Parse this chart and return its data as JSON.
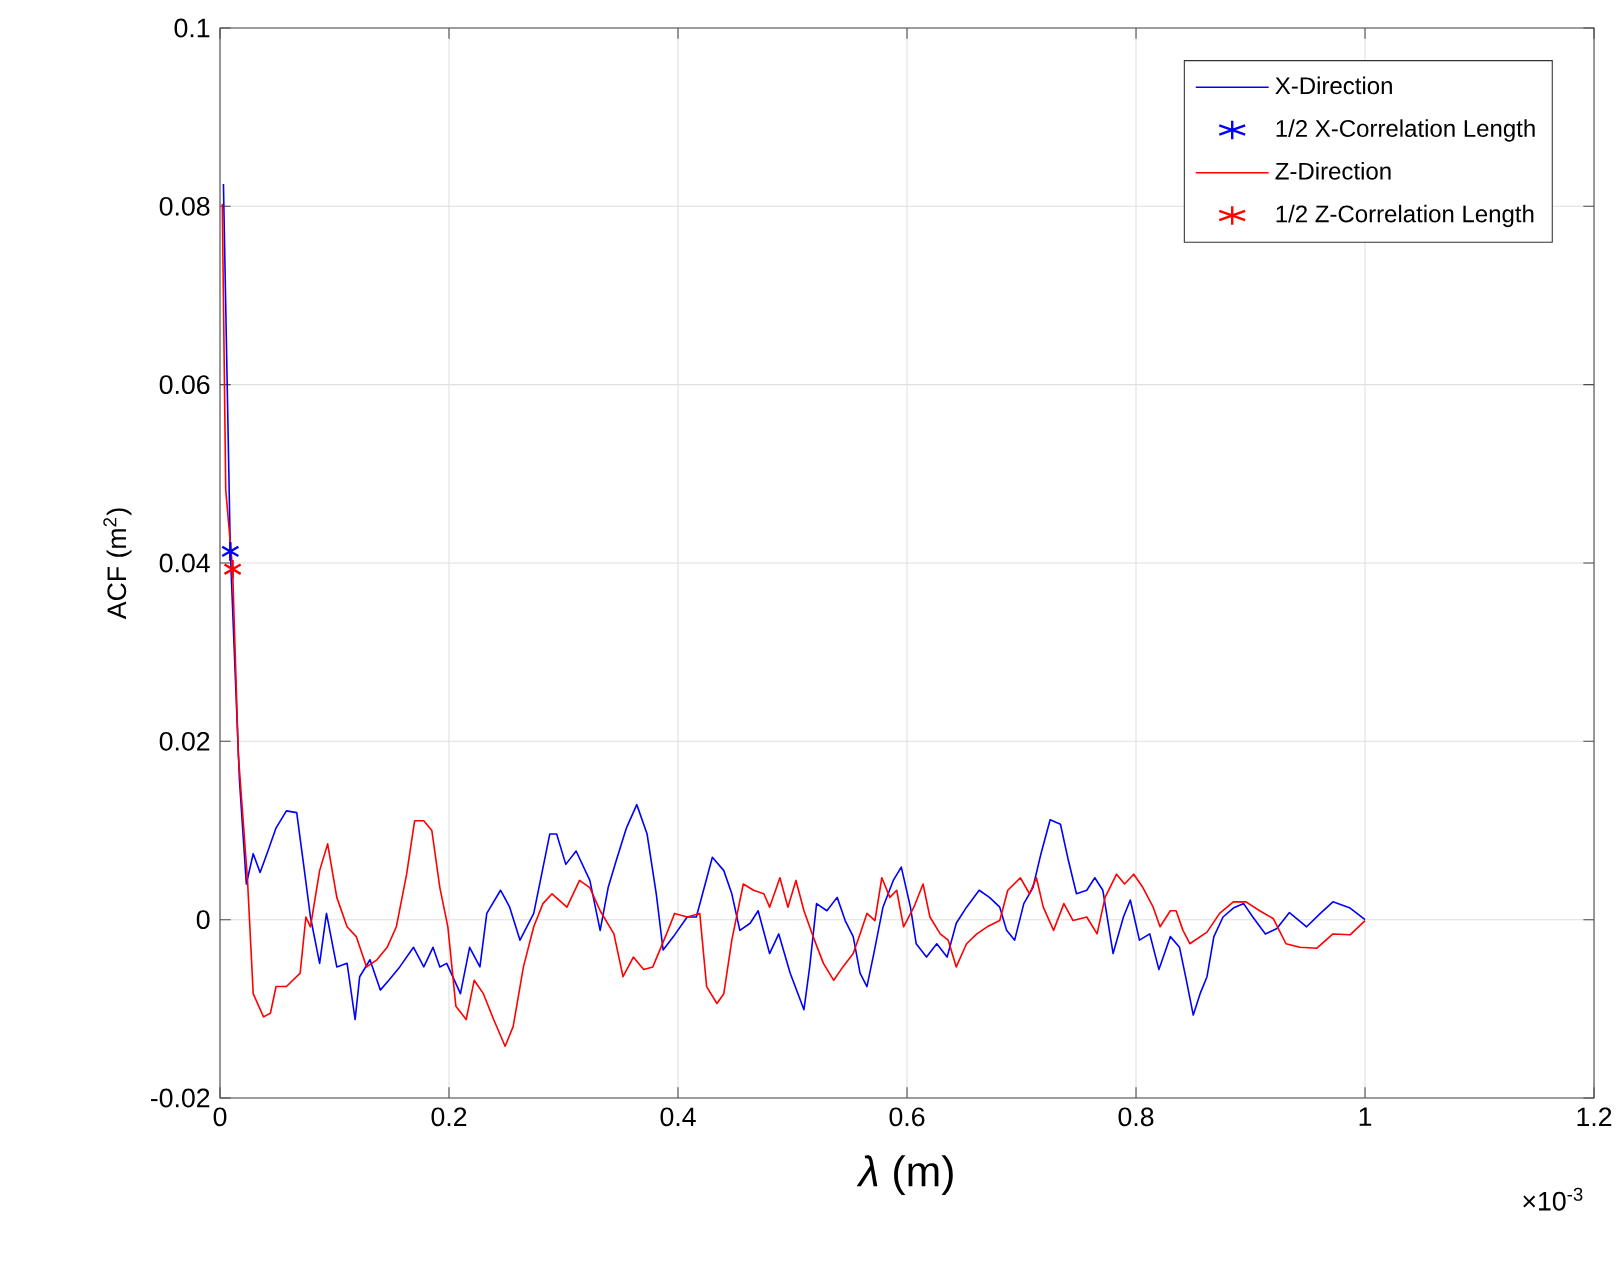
{
  "chart_data": {
    "type": "line",
    "xlabel": "*λ* (m)",
    "ylabel": "ACF (m$^{2}$)",
    "xlim": [
      0,
      1.2
    ],
    "ylim": [
      -0.02,
      0.1
    ],
    "xticks": [
      0,
      0.2,
      0.4,
      0.6,
      0.8,
      1,
      1.2
    ],
    "yticks": [
      -0.02,
      0,
      0.02,
      0.04,
      0.06,
      0.08,
      0.1
    ],
    "grid": true,
    "legend": "top right",
    "annotations": [
      "×10$^{-3}$"
    ],
    "series": [
      {
        "name": "X-Direction",
        "color": "#0000ff",
        "marker": "none",
        "x": [
          0.003,
          0.009,
          0.017,
          0.023,
          0.029,
          0.035,
          0.041,
          0.049,
          0.058,
          0.067,
          0.073,
          0.079,
          0.087,
          0.093,
          0.102,
          0.111,
          0.118,
          0.122,
          0.131,
          0.14,
          0.148,
          0.157,
          0.169,
          0.178,
          0.186,
          0.192,
          0.198,
          0.21,
          0.218,
          0.227,
          0.233,
          0.245,
          0.253,
          0.262,
          0.274,
          0.288,
          0.294,
          0.302,
          0.311,
          0.323,
          0.332,
          0.339,
          0.346,
          0.355,
          0.364,
          0.373,
          0.381,
          0.387,
          0.396,
          0.408,
          0.416,
          0.43,
          0.44,
          0.447,
          0.454,
          0.463,
          0.47,
          0.48,
          0.488,
          0.498,
          0.51,
          0.515,
          0.521,
          0.53,
          0.539,
          0.546,
          0.553,
          0.559,
          0.565,
          0.571,
          0.579,
          0.588,
          0.595,
          0.603,
          0.608,
          0.617,
          0.626,
          0.635,
          0.643,
          0.652,
          0.663,
          0.672,
          0.681,
          0.687,
          0.694,
          0.702,
          0.71,
          0.717,
          0.725,
          0.734,
          0.741,
          0.748,
          0.757,
          0.764,
          0.771,
          0.78,
          0.789,
          0.795,
          0.803,
          0.812,
          0.82,
          0.83,
          0.838,
          0.844,
          0.85,
          0.856,
          0.862,
          0.868,
          0.876,
          0.885,
          0.894,
          0.902,
          0.913,
          0.923,
          0.934,
          0.949,
          0.961,
          0.972,
          0.987,
          1.0
        ],
        "values": [
          0.0825,
          0.0413,
          0.0156,
          0.004,
          0.0074,
          0.0053,
          0.0074,
          0.0103,
          0.0122,
          0.012,
          0.0062,
          0.0003,
          -0.0049,
          0.0007,
          -0.0053,
          -0.0049,
          -0.0112,
          -0.0064,
          -0.0045,
          -0.0079,
          -0.0067,
          -0.0053,
          -0.0031,
          -0.0053,
          -0.0031,
          -0.0053,
          -0.0049,
          -0.0083,
          -0.0031,
          -0.0053,
          0.0007,
          0.0033,
          0.0014,
          -0.0023,
          0.0007,
          0.0096,
          0.0096,
          0.0062,
          0.0077,
          0.0044,
          -0.0012,
          0.0036,
          0.0066,
          0.0103,
          0.0129,
          0.0096,
          0.0029,
          -0.0034,
          -0.0019,
          0.0003,
          0.0003,
          0.007,
          0.0055,
          0.0029,
          -0.0012,
          -0.0004,
          0.001,
          -0.0038,
          -0.0016,
          -0.006,
          -0.0101,
          -0.0053,
          0.0018,
          0.001,
          0.0025,
          -0.0001,
          -0.0019,
          -0.006,
          -0.0075,
          -0.0038,
          0.0014,
          0.0044,
          0.0059,
          0.0014,
          -0.0027,
          -0.0042,
          -0.0027,
          -0.0042,
          -0.0004,
          0.0014,
          0.0033,
          0.0025,
          0.0014,
          -0.0012,
          -0.0023,
          0.0018,
          0.0036,
          0.0074,
          0.0112,
          0.0107,
          0.0066,
          0.0029,
          0.0033,
          0.0047,
          0.0033,
          -0.0038,
          0.0003,
          0.0022,
          -0.0023,
          -0.0016,
          -0.0056,
          -0.0019,
          -0.0031,
          -0.0068,
          -0.0107,
          -0.0083,
          -0.0064,
          -0.0019,
          0.0003,
          0.0013,
          0.0018,
          0.0003,
          -0.0016,
          -0.001,
          0.0008,
          -0.0008,
          0.0007,
          0.002,
          0.0013,
          0
        ]
      },
      {
        "name": "1/2 X-Correlation Length",
        "type": "scatter",
        "color": "#0000ff",
        "marker": "cross",
        "x": [
          0.009
        ],
        "values": [
          0.0413
        ]
      },
      {
        "name": "Z-Direction",
        "color": "#ff0000",
        "marker": "none",
        "x": [
          0.002,
          0.005,
          0.011,
          0.016,
          0.024,
          0.029,
          0.038,
          0.044,
          0.049,
          0.058,
          0.07,
          0.075,
          0.079,
          0.087,
          0.094,
          0.102,
          0.111,
          0.119,
          0.128,
          0.137,
          0.146,
          0.154,
          0.163,
          0.17,
          0.178,
          0.185,
          0.192,
          0.199,
          0.206,
          0.215,
          0.222,
          0.23,
          0.239,
          0.249,
          0.256,
          0.265,
          0.274,
          0.282,
          0.29,
          0.303,
          0.314,
          0.323,
          0.332,
          0.344,
          0.352,
          0.361,
          0.37,
          0.378,
          0.39,
          0.397,
          0.408,
          0.419,
          0.425,
          0.434,
          0.44,
          0.447,
          0.457,
          0.466,
          0.475,
          0.48,
          0.489,
          0.496,
          0.503,
          0.51,
          0.518,
          0.527,
          0.536,
          0.544,
          0.553,
          0.559,
          0.565,
          0.572,
          0.578,
          0.585,
          0.591,
          0.597,
          0.606,
          0.614,
          0.62,
          0.629,
          0.636,
          0.643,
          0.652,
          0.661,
          0.67,
          0.681,
          0.688,
          0.699,
          0.707,
          0.713,
          0.719,
          0.728,
          0.737,
          0.745,
          0.757,
          0.766,
          0.773,
          0.783,
          0.79,
          0.798,
          0.806,
          0.815,
          0.821,
          0.83,
          0.835,
          0.841,
          0.847,
          0.862,
          0.873,
          0.885,
          0.896,
          0.908,
          0.92,
          0.931,
          0.943,
          0.958,
          0.972,
          0.987,
          1.0
        ],
        "values": [
          0.0803,
          0.0482,
          0.0393,
          0.0185,
          0.0045,
          -0.0083,
          -0.0109,
          -0.0105,
          -0.0075,
          -0.0075,
          -0.006,
          0.0003,
          -0.0008,
          0.0055,
          0.0085,
          0.0025,
          -0.0008,
          -0.0019,
          -0.0053,
          -0.0045,
          -0.0031,
          -0.0008,
          0.0051,
          0.0111,
          0.0111,
          0.01,
          0.0036,
          -0.0008,
          -0.0097,
          -0.0112,
          -0.0068,
          -0.0083,
          -0.0112,
          -0.0142,
          -0.012,
          -0.0053,
          -0.0008,
          0.0018,
          0.0029,
          0.0014,
          0.0044,
          0.0036,
          0.001,
          -0.0016,
          -0.0064,
          -0.0042,
          -0.0056,
          -0.0053,
          -0.0016,
          0.0007,
          0.0003,
          0.0007,
          -0.0075,
          -0.0094,
          -0.0083,
          -0.0023,
          0.004,
          0.0033,
          0.0029,
          0.0014,
          0.0047,
          0.0014,
          0.0044,
          0.001,
          -0.0019,
          -0.0049,
          -0.0068,
          -0.0053,
          -0.0038,
          -0.0016,
          0.0007,
          -0.0001,
          0.0047,
          0.0025,
          0.0033,
          -0.0008,
          0.0014,
          0.004,
          0.0003,
          -0.0016,
          -0.0023,
          -0.0053,
          -0.0027,
          -0.0016,
          -0.0008,
          -0.0001,
          0.0033,
          0.0047,
          0.0029,
          0.0047,
          0.0014,
          -0.0012,
          0.0018,
          -0.0001,
          0.0003,
          -0.0016,
          0.0025,
          0.0051,
          0.004,
          0.0051,
          0.0036,
          0.0014,
          -0.0008,
          0.001,
          0.001,
          -0.0012,
          -0.0027,
          -0.0014,
          0.0007,
          0.002,
          0.002,
          0.001,
          0.0001,
          -0.0027,
          -0.0031,
          -0.0032,
          -0.0016,
          -0.0017,
          -0.0001
        ]
      },
      {
        "name": "1/2 Z-Correlation Length",
        "type": "scatter",
        "color": "#ff0000",
        "marker": "cross",
        "x": [
          0.011
        ],
        "values": [
          0.0393
        ]
      }
    ]
  }
}
